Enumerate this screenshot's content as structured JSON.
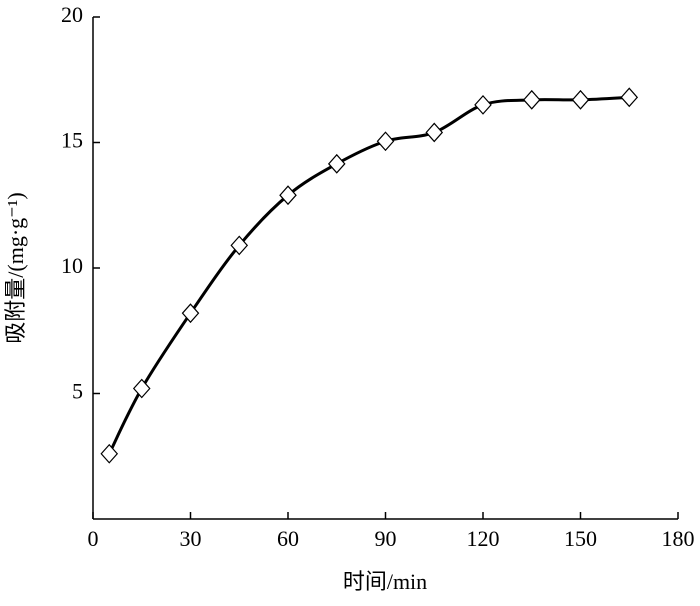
{
  "chart_data": {
    "type": "line",
    "xlabel": "时间/min",
    "ylabel": "吸附量/(mg·g⁻¹)",
    "x": [
      5,
      15,
      30,
      45,
      60,
      75,
      90,
      105,
      120,
      135,
      150,
      165
    ],
    "series": [
      {
        "values": [
          2.6,
          5.2,
          8.2,
          10.9,
          12.9,
          14.15,
          15.05,
          15.4,
          16.5,
          16.7,
          16.7,
          16.8
        ],
        "color": "#000000"
      }
    ],
    "xlim": [
      0,
      180
    ],
    "xticks": [
      0,
      30,
      60,
      90,
      120,
      150,
      180
    ],
    "ylim": [
      0,
      20
    ],
    "yticks": [
      5,
      10,
      15,
      20
    ]
  }
}
